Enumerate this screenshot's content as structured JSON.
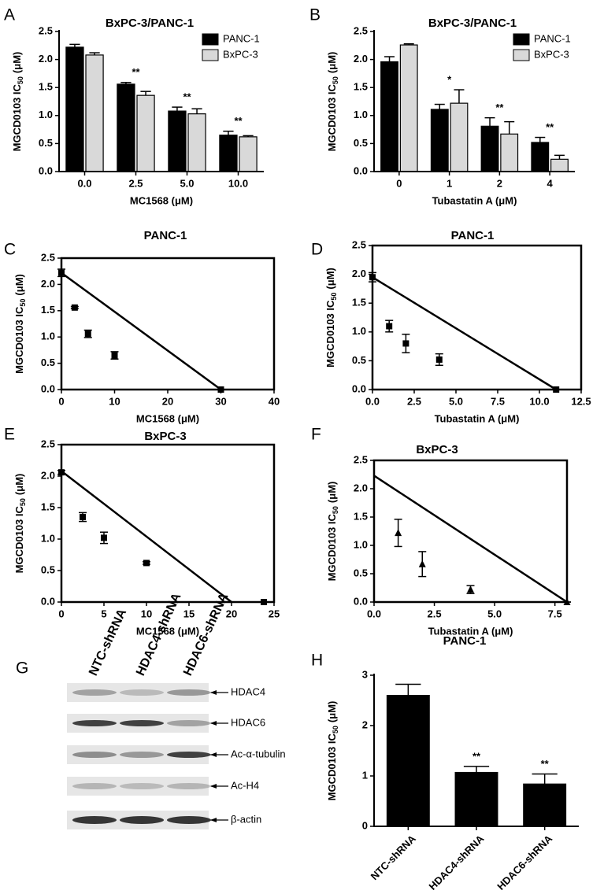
{
  "chart_data": [
    {
      "type": "bar",
      "panel": "A",
      "title": "BxPC-3/PANC-1",
      "x_label": "MC1568 (μM)",
      "y_label": [
        "MGCD0103 IC",
        "50",
        "(μM)"
      ],
      "categories": [
        "0.0",
        "2.5",
        "5.0",
        "10.0"
      ],
      "series": [
        {
          "name": "PANC-1",
          "color": "#000000",
          "values": [
            2.22,
            1.56,
            1.08,
            0.65
          ],
          "errors": [
            0.05,
            0.03,
            0.07,
            0.07
          ]
        },
        {
          "name": "BxPC-3",
          "color": "#d9d9d9",
          "values": [
            2.08,
            1.36,
            1.03,
            0.62
          ],
          "errors": [
            0.04,
            0.07,
            0.09,
            0.02
          ]
        }
      ],
      "annotations": [
        null,
        "**",
        "**",
        "**"
      ],
      "legend": "upper right",
      "ylim": [
        0,
        2.5
      ],
      "yticks": [
        {
          "value": 0,
          "label": "0.0"
        },
        0.5,
        {
          "value": 1,
          "label": "1.0"
        },
        1.5,
        {
          "value": 2,
          "label": "2.0"
        },
        2.5
      ]
    },
    {
      "type": "bar",
      "panel": "B",
      "title": "BxPC-3/PANC-1",
      "x_label": "Tubastatin A (μM)",
      "y_label": [
        "MGCD0103 IC",
        "50",
        "(μM)"
      ],
      "categories": [
        "0",
        "1",
        "2",
        "4"
      ],
      "series": [
        {
          "name": "PANC-1",
          "color": "#000000",
          "values": [
            1.96,
            1.11,
            0.81,
            0.52
          ],
          "errors": [
            0.09,
            0.09,
            0.15,
            0.09
          ]
        },
        {
          "name": "BxPC-3",
          "color": "#d9d9d9",
          "values": [
            2.26,
            1.22,
            0.67,
            0.22
          ],
          "errors": [
            0.02,
            0.24,
            0.22,
            0.07
          ]
        }
      ],
      "annotations": [
        null,
        "*",
        "**",
        "**"
      ],
      "legend": "upper right",
      "ylim": [
        0,
        2.5
      ],
      "yticks": [
        {
          "value": 0,
          "label": "0.0"
        },
        0.5,
        {
          "value": 1,
          "label": "1.0"
        },
        1.5,
        {
          "value": 2,
          "label": "2.0"
        },
        2.5
      ]
    },
    {
      "type": "scatter",
      "panel": "C",
      "title": "PANC-1",
      "x_label": "MC1568 (μM)",
      "y_label": [
        "MGCD0103 IC",
        "50",
        "(μM)"
      ],
      "x": [
        0,
        2.5,
        5,
        10,
        30
      ],
      "values": [
        2.22,
        1.56,
        1.06,
        0.65,
        0
      ],
      "errors": [
        0.07,
        0.02,
        0.07,
        0.07,
        0
      ],
      "marker": "square",
      "color": "#000000",
      "line": {
        "x": [
          0,
          30
        ],
        "y": [
          2.22,
          0
        ]
      },
      "xlim": [
        0,
        40
      ],
      "xticks": [
        0,
        10,
        20,
        30,
        40
      ],
      "ylim": [
        0,
        2.5
      ],
      "yticks": [
        {
          "value": 0,
          "label": "0.0"
        },
        0.5,
        {
          "value": 1,
          "label": "1.0"
        },
        1.5,
        {
          "value": 2,
          "label": "2.0"
        },
        2.5
      ]
    },
    {
      "type": "scatter",
      "panel": "D",
      "title": "PANC-1",
      "x_label": "Tubastatin A (μM)",
      "y_label": [
        "MGCD0103 IC",
        "50",
        "(μM)"
      ],
      "x": [
        0,
        1,
        2,
        4,
        11
      ],
      "values": [
        1.95,
        1.1,
        0.8,
        0.52,
        0
      ],
      "errors": [
        0.08,
        0.1,
        0.16,
        0.1,
        0
      ],
      "marker": "square",
      "color": "#000000",
      "line": {
        "x": [
          0,
          11
        ],
        "y": [
          1.95,
          0
        ]
      },
      "xlim": [
        0,
        12.5
      ],
      "xticks": [
        {
          "value": 0,
          "label": "0.0"
        },
        2.5,
        {
          "value": 5,
          "label": "5.0"
        },
        7.5,
        {
          "value": 10,
          "label": "10.0"
        },
        12.5
      ],
      "ylim": [
        0,
        2.5
      ],
      "yticks": [
        {
          "value": 0,
          "label": "0.0"
        },
        0.5,
        {
          "value": 1,
          "label": "1.0"
        },
        1.5,
        {
          "value": 2,
          "label": "2.0"
        },
        2.5
      ]
    },
    {
      "type": "scatter",
      "panel": "E",
      "title": "BxPC-3",
      "x_label": "MC1568 (μM)",
      "y_label": [
        "MGCD0103 IC",
        "50",
        "(μM)"
      ],
      "x": [
        0,
        2.5,
        5,
        10,
        23.8
      ],
      "values": [
        2.06,
        1.35,
        1.02,
        0.62,
        0
      ],
      "errors": [
        0.03,
        0.07,
        0.09,
        0.02,
        0
      ],
      "marker": "square",
      "color": "#000000",
      "line": {
        "x": [
          0,
          20
        ],
        "y": [
          2.08,
          0
        ]
      },
      "xlim": [
        0,
        25
      ],
      "xticks": [
        0,
        5,
        10,
        15,
        20,
        25
      ],
      "ylim": [
        0,
        2.5
      ],
      "yticks": [
        {
          "value": 0,
          "label": "0.0"
        },
        0.5,
        {
          "value": 1,
          "label": "1.0"
        },
        1.5,
        {
          "value": 2,
          "label": "2.0"
        },
        2.5
      ]
    },
    {
      "type": "scatter",
      "panel": "F",
      "title": "BxPC-3",
      "x_label": "Tubastatin A (μM)",
      "y_label": [
        "MGCD0103 IC",
        "50",
        "(μM)"
      ],
      "x": [
        1,
        2,
        4,
        8
      ],
      "values": [
        1.22,
        0.67,
        0.22,
        0
      ],
      "errors": [
        0.24,
        0.22,
        0.07,
        0
      ],
      "marker": "triangle",
      "color": "#000000",
      "line": {
        "x": [
          0,
          8
        ],
        "y": [
          2.23,
          0
        ]
      },
      "xlim": [
        0,
        8
      ],
      "xticks": [
        {
          "value": 0,
          "label": "0.0"
        },
        2.5,
        {
          "value": 5,
          "label": "5.0"
        },
        7.5
      ],
      "ylim": [
        0,
        2.5
      ],
      "yticks": [
        {
          "value": 0,
          "label": "0.0"
        },
        0.5,
        {
          "value": 1,
          "label": "1.0"
        },
        1.5,
        {
          "value": 2,
          "label": "2.0"
        },
        2.5
      ]
    },
    {
      "type": "bar",
      "panel": "H",
      "title": "PANC-1",
      "y_label": [
        "MGCD0103 IC",
        "50",
        "(μM)"
      ],
      "categories": [
        "NTC-shRNA",
        "HDAC4-shRNA",
        "HDAC6-shRNA"
      ],
      "series": [
        {
          "color": "#000000",
          "values": [
            2.6,
            1.07,
            0.84
          ],
          "errors": [
            0.22,
            0.12,
            0.2
          ]
        }
      ],
      "annotations": [
        null,
        "**",
        "**"
      ],
      "ylim": [
        0,
        3
      ],
      "yticks": [
        0,
        1,
        2,
        3
      ]
    }
  ],
  "western_blot": {
    "panel": "G",
    "lanes": [
      "NTC-shRNA",
      "HDAC4-shRNA",
      "HDAC6-shRNA"
    ],
    "bands": [
      "HDAC4",
      "HDAC6",
      "Ac-α-tubulin",
      "Ac-H4",
      "β-actin"
    ]
  }
}
